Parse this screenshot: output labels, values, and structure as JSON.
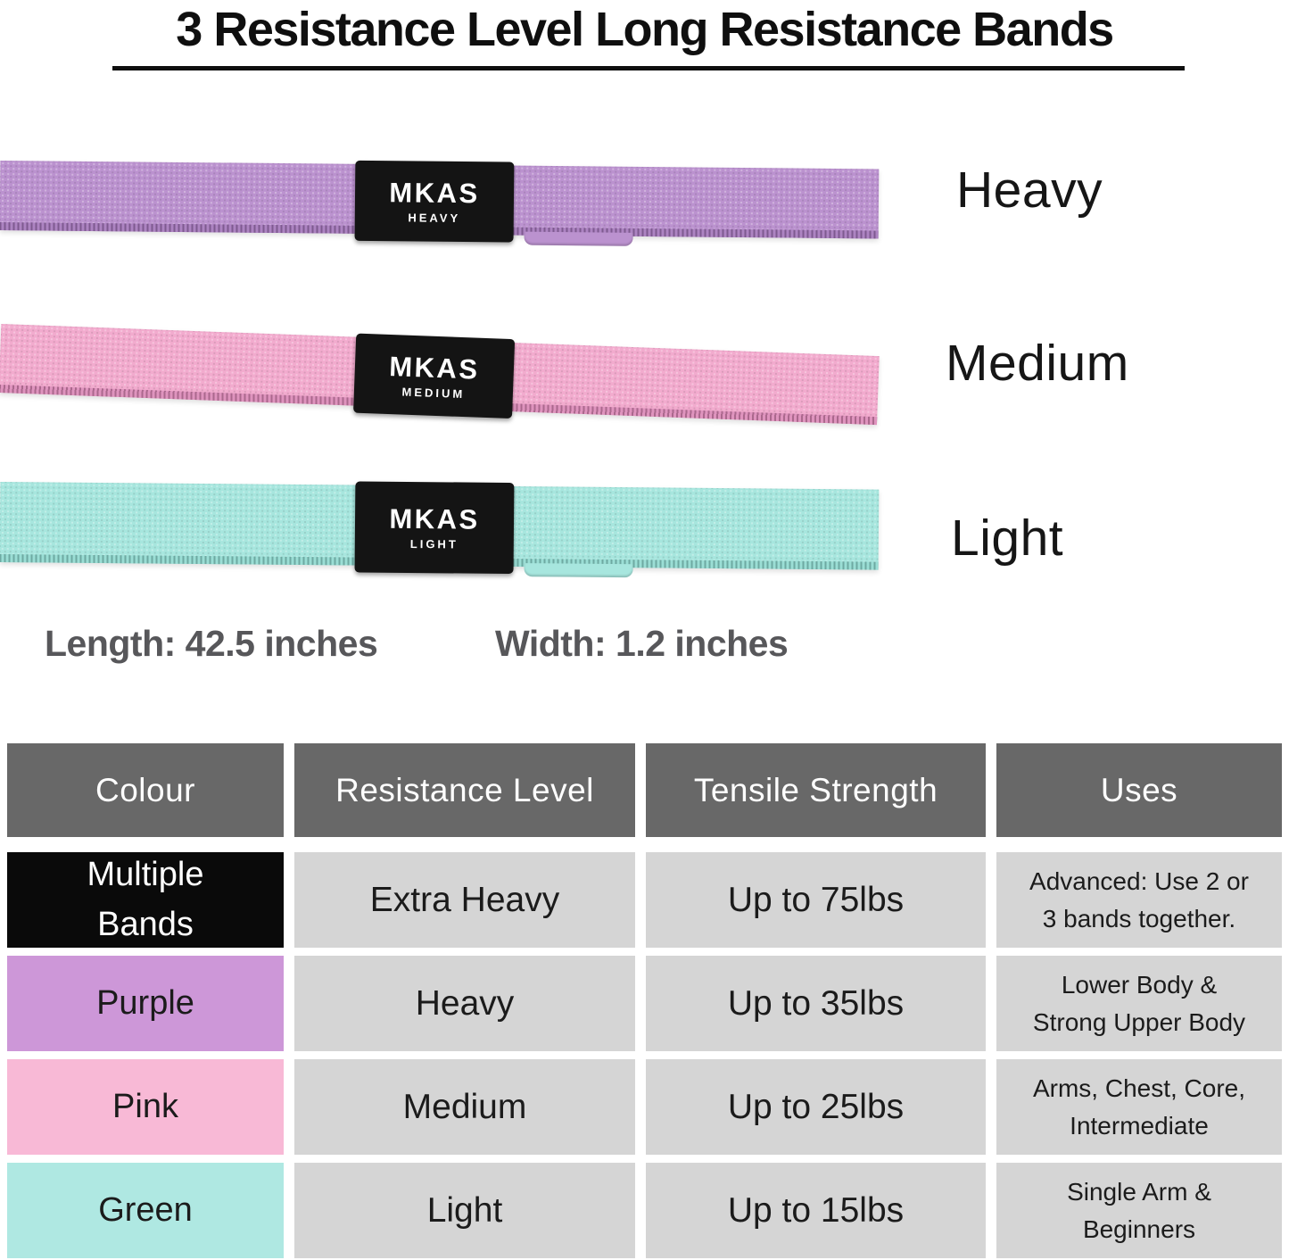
{
  "page": {
    "title": "3 Resistance Level Long Resistance Bands"
  },
  "bands": [
    {
      "tag_brand": "MKAS",
      "tag_level": "HEAVY",
      "side_label": "Heavy",
      "color": "#bb92cf",
      "hem_color": "#a273b9"
    },
    {
      "tag_brand": "MKAS",
      "tag_level": "MEDIUM",
      "side_label": "Medium",
      "color": "#f2abce",
      "hem_color": "#db85b5"
    },
    {
      "tag_brand": "MKAS",
      "tag_level": "LIGHT",
      "side_label": "Light",
      "color": "#a7e6de",
      "hem_color": "#8dd9cf"
    }
  ],
  "dimensions": {
    "length_label": "Length: 42.5 inches",
    "width_label": "Width: 1.2 inches"
  },
  "table": {
    "header_bg": "#686868",
    "cell_bg": "#d5d5d5",
    "headers": [
      "Colour",
      "Resistance Level",
      "Tensile Strength",
      "Uses"
    ],
    "rows": [
      {
        "colour": "Multiple Bands",
        "colour_bg": "#0a0a0a",
        "colour_text": "#ffffff",
        "resistance": "Extra Heavy",
        "tensile": "Up to 75lbs",
        "uses": "Advanced: Use 2 or\n3 bands together."
      },
      {
        "colour": "Purple",
        "colour_bg": "#cd97d8",
        "colour_text": "#1b1b1b",
        "resistance": "Heavy",
        "tensile": "Up to 35lbs",
        "uses": "Lower Body &\nStrong Upper Body"
      },
      {
        "colour": "Pink",
        "colour_bg": "#f8b9d6",
        "colour_text": "#1b1b1b",
        "resistance": "Medium",
        "tensile": "Up to 25lbs",
        "uses": "Arms, Chest, Core,\nIntermediate"
      },
      {
        "colour": "Green",
        "colour_bg": "#afe8e2",
        "colour_text": "#1b1b1b",
        "resistance": "Light",
        "tensile": "Up to 15lbs",
        "uses": "Single Arm &\nBeginners"
      }
    ]
  }
}
